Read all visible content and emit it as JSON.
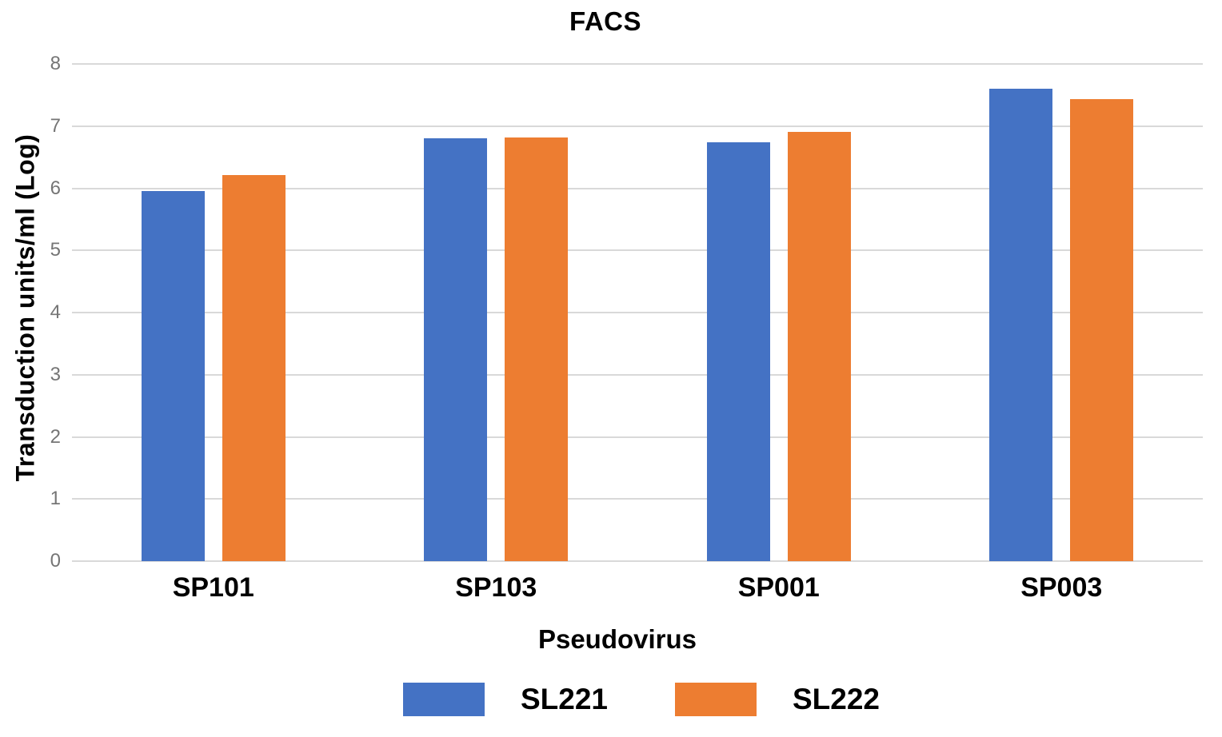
{
  "figure": {
    "background": "#FFFFFF"
  },
  "chart_data": {
    "type": "bar",
    "title": "FACS",
    "xlabel": "Pseudovirus",
    "ylabel": "Transduction units/ml (Log)",
    "categories": [
      "SP101",
      "SP103",
      "SP001",
      "SP003"
    ],
    "series": [
      {
        "name": "SL221",
        "color": "#4472C4",
        "values": [
          5.96,
          6.81,
          6.74,
          7.6
        ]
      },
      {
        "name": "SL222",
        "color": "#ED7D31",
        "values": [
          6.21,
          6.82,
          6.91,
          7.43
        ]
      }
    ],
    "ylim": [
      0,
      8
    ],
    "yticks": [
      0,
      1,
      2,
      3,
      4,
      5,
      6,
      7,
      8
    ],
    "grid": true,
    "gridline_color": "#D9D9D9",
    "axis_line_color": "#D9D9D9",
    "tick_label_color": "#757575",
    "text_color": "#000000",
    "legend_position": "bottom"
  }
}
